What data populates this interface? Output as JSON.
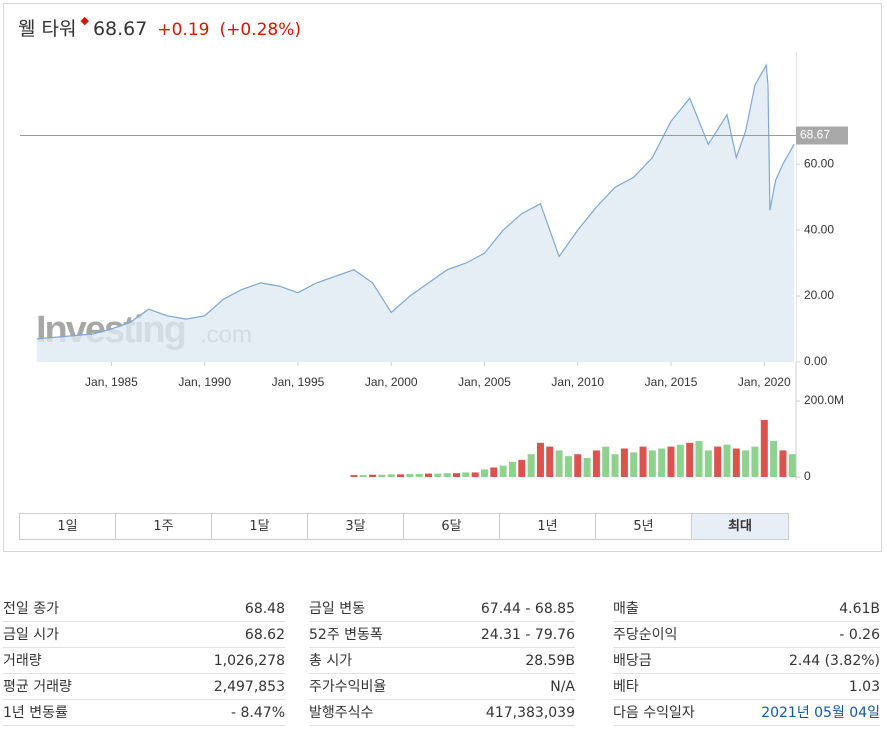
{
  "header": {
    "name": "웰 타워",
    "price": "68.67",
    "change": "+0.19",
    "change_pct": "(+0.28%)"
  },
  "chart_data": [
    {
      "type": "line",
      "x": [
        1981,
        1983,
        1984,
        1985,
        1986,
        1987,
        1988,
        1989,
        1990,
        1991,
        1992,
        1993,
        1994,
        1995,
        1996,
        1997,
        1998,
        1999,
        2000,
        2001,
        2002,
        2003,
        2004,
        2005,
        2006,
        2007,
        2008,
        2009,
        2010,
        2011,
        2012,
        2013,
        2014,
        2015,
        2016,
        2017,
        2018,
        2018.5,
        2019,
        2019.5,
        2020.1,
        2020.2,
        2020.3,
        2020.6,
        2021.0,
        2021.6
      ],
      "values": [
        7,
        8,
        8.5,
        10,
        12,
        16,
        14,
        13,
        14,
        19,
        22,
        24,
        23,
        21,
        24,
        26,
        28,
        24,
        15,
        20,
        24,
        28,
        30,
        33,
        40,
        45,
        48,
        32,
        40,
        47,
        53,
        56,
        62,
        73,
        80,
        66,
        75,
        62,
        70,
        84,
        90,
        84,
        46,
        55,
        60,
        66
      ],
      "color": "#7ea8d3",
      "last_value": 68.67,
      "xlim": [
        1980.1,
        2021.7
      ],
      "ylim": [
        0,
        94
      ],
      "xticks": [
        {
          "value": 1985,
          "label": "Jan, 1985"
        },
        {
          "value": 1990,
          "label": "Jan, 1990"
        },
        {
          "value": 1995,
          "label": "Jan, 1995"
        },
        {
          "value": 2000,
          "label": "Jan, 2000"
        },
        {
          "value": 2005,
          "label": "Jan, 2005"
        },
        {
          "value": 2010,
          "label": "Jan, 2010"
        },
        {
          "value": 2015,
          "label": "Jan, 2015"
        },
        {
          "value": 2020,
          "label": "Jan, 2020"
        }
      ],
      "yticks": [
        {
          "value": 0,
          "label": "0.00"
        },
        {
          "value": 20,
          "label": "20.00"
        },
        {
          "value": 40,
          "label": "40.00"
        },
        {
          "value": 60,
          "label": "60.00"
        }
      ],
      "watermark": "Investing",
      "watermark_suffix": ".com"
    },
    {
      "type": "bar",
      "x": [
        1998,
        1998.5,
        1999,
        1999.5,
        2000,
        2000.5,
        2001,
        2001.5,
        2002,
        2002.5,
        2003,
        2003.5,
        2004,
        2004.5,
        2005,
        2005.5,
        2006,
        2006.5,
        2007,
        2007.5,
        2008,
        2008.5,
        2009,
        2009.5,
        2010,
        2010.5,
        2011,
        2011.5,
        2012,
        2012.5,
        2013,
        2013.5,
        2014,
        2014.5,
        2015,
        2015.5,
        2016,
        2016.5,
        2017,
        2017.5,
        2018,
        2018.5,
        2019,
        2019.5,
        2020,
        2020.5,
        2021,
        2021.5
      ],
      "values": [
        5000000,
        5000000,
        6000000,
        6000000,
        7000000,
        7000000,
        8000000,
        8000000,
        9000000,
        9000000,
        10000000,
        10000000,
        12000000,
        12000000,
        20000000,
        25000000,
        30000000,
        40000000,
        45000000,
        60000000,
        90000000,
        80000000,
        70000000,
        55000000,
        60000000,
        50000000,
        70000000,
        80000000,
        60000000,
        75000000,
        65000000,
        80000000,
        70000000,
        75000000,
        80000000,
        85000000,
        90000000,
        95000000,
        70000000,
        80000000,
        85000000,
        75000000,
        70000000,
        80000000,
        150000000,
        95000000,
        70000000,
        60000000
      ],
      "colors": [
        "#d9534f",
        "#8fd18f",
        "#d9534f",
        "#8fd18f",
        "#8fd18f",
        "#d9534f",
        "#8fd18f",
        "#8fd18f",
        "#d9534f",
        "#8fd18f",
        "#8fd18f",
        "#d9534f",
        "#8fd18f",
        "#d9534f",
        "#8fd18f",
        "#d9534f",
        "#8fd18f",
        "#8fd18f",
        "#d9534f",
        "#8fd18f",
        "#d9534f",
        "#d9534f",
        "#8fd18f",
        "#8fd18f",
        "#d9534f",
        "#8fd18f",
        "#d9534f",
        "#8fd18f",
        "#8fd18f",
        "#d9534f",
        "#8fd18f",
        "#d9534f",
        "#8fd18f",
        "#8fd18f",
        "#d9534f",
        "#8fd18f",
        "#d9534f",
        "#8fd18f",
        "#8fd18f",
        "#d9534f",
        "#8fd18f",
        "#d9534f",
        "#8fd18f",
        "#8fd18f",
        "#d9534f",
        "#8fd18f",
        "#d9534f",
        "#8fd18f"
      ],
      "xlim": [
        1980.1,
        2021.7
      ],
      "ylim": [
        0,
        208000000
      ],
      "yticks": [
        0,
        {
          "value": 200000000,
          "label": "200.0M"
        }
      ]
    }
  ],
  "tabs": [
    "1일",
    "1주",
    "1달",
    "3달",
    "6달",
    "1년",
    "5년",
    "최대"
  ],
  "active_tab": 7,
  "stats": [
    [
      [
        "전일 종가",
        "68.48"
      ],
      [
        "금일 시가",
        "68.62"
      ],
      [
        "거래량",
        "1,026,278"
      ],
      [
        "평균 거래량",
        "2,497,853"
      ],
      [
        "1년 변동률",
        "- 8.47%"
      ]
    ],
    [
      [
        "금일 변동",
        "67.44 - 68.85"
      ],
      [
        "52주 변동폭",
        "24.31 - 79.76"
      ],
      [
        "총 시가",
        "28.59B"
      ],
      [
        "주가수익비율",
        "N/A"
      ],
      [
        "발행주식수",
        "417,383,039"
      ]
    ],
    [
      [
        "매출",
        "4.61B"
      ],
      [
        "주당순이익",
        "- 0.26"
      ],
      [
        "배당금",
        "2.44 (3.82%)"
      ],
      [
        "베타",
        "1.03"
      ],
      [
        "다음 수익일자",
        "2021년 05월 04일"
      ]
    ]
  ]
}
